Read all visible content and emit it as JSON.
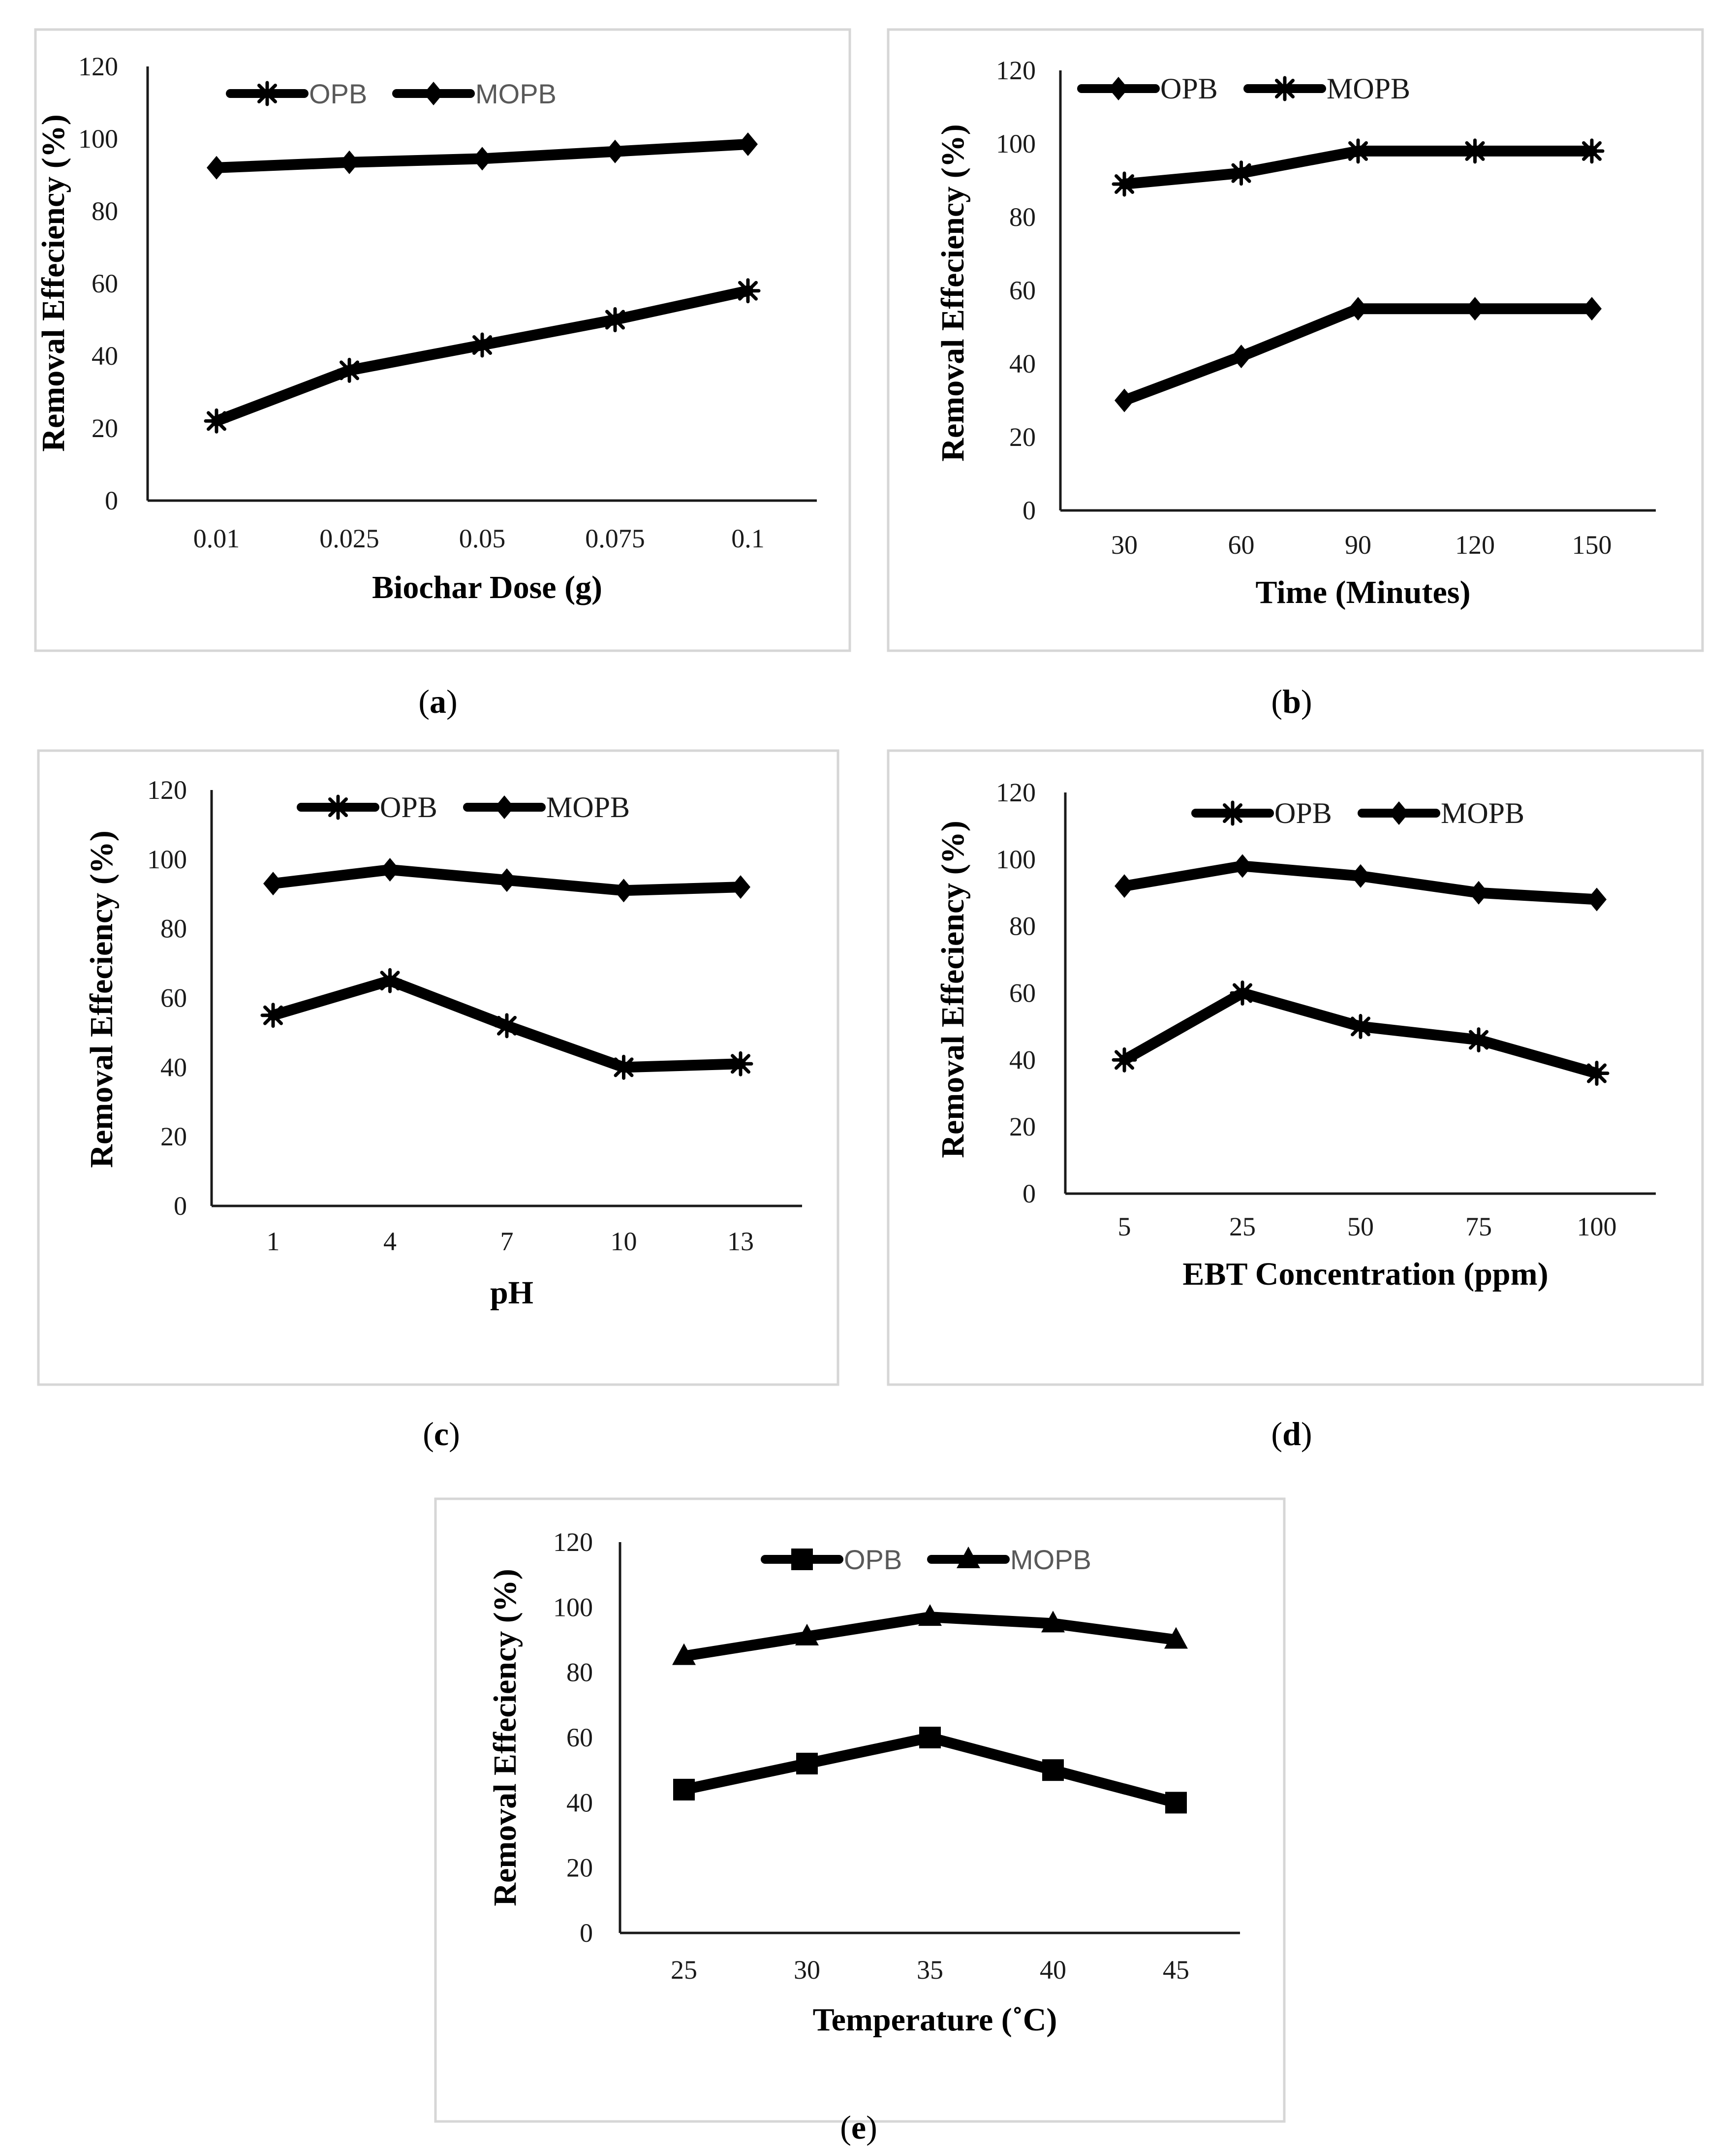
{
  "captions": [
    "(a)",
    "(b)",
    "(c)",
    "(d)",
    "(e)"
  ],
  "chart_data": [
    {
      "id": "a",
      "type": "line",
      "title": "",
      "xlabel": "Biochar Dose (g)",
      "ylabel": "Removal  Effeciency (%)",
      "categories": [
        "0.01",
        "0.025",
        "0.05",
        "0.075",
        "0.1"
      ],
      "ylim": [
        0,
        120
      ],
      "yticks": [
        0,
        20,
        40,
        60,
        80,
        100,
        120
      ],
      "legend_position": "top",
      "series": [
        {
          "name": "OPB",
          "marker": "asterisk",
          "values": [
            22,
            36,
            43,
            50,
            58
          ]
        },
        {
          "name": "MOPB",
          "marker": "diamond",
          "values": [
            92,
            93.5,
            94.5,
            96.5,
            98.5
          ]
        }
      ]
    },
    {
      "id": "b",
      "type": "line",
      "title": "",
      "xlabel": "Time (Minutes)",
      "ylabel": "Removal Effeciency (%)",
      "categories": [
        "30",
        "60",
        "90",
        "120",
        "150"
      ],
      "ylim": [
        0,
        120
      ],
      "yticks": [
        0,
        20,
        40,
        60,
        80,
        100,
        120
      ],
      "legend_position": "top",
      "series": [
        {
          "name": "OPB",
          "marker": "diamond",
          "values": [
            30,
            42,
            55,
            55,
            55
          ]
        },
        {
          "name": "MOPB",
          "marker": "asterisk",
          "values": [
            89,
            92,
            98,
            98,
            98
          ]
        }
      ]
    },
    {
      "id": "c",
      "type": "line",
      "title": "",
      "xlabel": "pH",
      "ylabel": "Removal Effeciency (%)",
      "categories": [
        "1",
        "4",
        "7",
        "10",
        "13"
      ],
      "ylim": [
        0,
        120
      ],
      "yticks": [
        0,
        20,
        40,
        60,
        80,
        100,
        120
      ],
      "legend_position": "top",
      "series": [
        {
          "name": "OPB",
          "marker": "asterisk",
          "values": [
            55,
            65,
            52,
            40,
            41
          ]
        },
        {
          "name": "MOPB",
          "marker": "diamond",
          "values": [
            93,
            97,
            94,
            91,
            92
          ]
        }
      ]
    },
    {
      "id": "d",
      "type": "line",
      "title": "",
      "xlabel": "EBT Concentration (ppm)",
      "ylabel": "Removal Effeciency (%)",
      "categories": [
        "5",
        "25",
        "50",
        "75",
        "100"
      ],
      "ylim": [
        0,
        120
      ],
      "yticks": [
        0,
        20,
        40,
        60,
        80,
        100,
        120
      ],
      "legend_position": "top",
      "series": [
        {
          "name": "OPB",
          "marker": "asterisk",
          "values": [
            40,
            60,
            50,
            46,
            36
          ]
        },
        {
          "name": "MOPB",
          "marker": "diamond",
          "values": [
            92,
            98,
            95,
            90,
            88
          ]
        }
      ]
    },
    {
      "id": "e",
      "type": "line",
      "title": "",
      "xlabel": "Temperature (˚C)",
      "ylabel": "Removal Effeciency (%)",
      "categories": [
        "25",
        "30",
        "35",
        "40",
        "45"
      ],
      "ylim": [
        0,
        120
      ],
      "yticks": [
        0,
        20,
        40,
        60,
        80,
        100,
        120
      ],
      "legend_position": "top",
      "series": [
        {
          "name": "OPB",
          "marker": "square",
          "values": [
            44,
            52,
            60,
            50,
            40
          ]
        },
        {
          "name": "MOPB",
          "marker": "triangle",
          "values": [
            85,
            91,
            97,
            95,
            90
          ]
        }
      ]
    }
  ]
}
